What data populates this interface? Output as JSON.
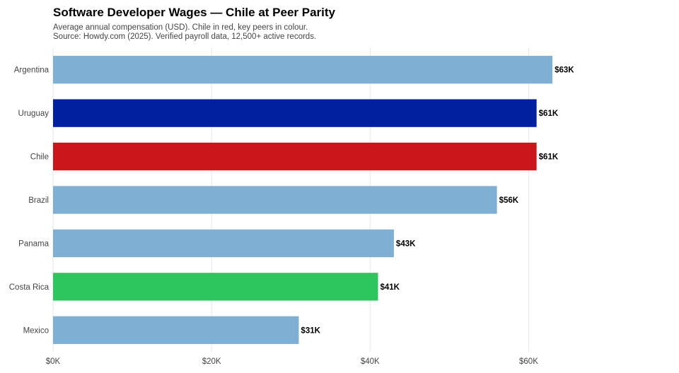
{
  "chart_data": {
    "type": "bar",
    "orientation": "horizontal",
    "title": "Software Developer Wages — Chile at Peer Parity",
    "subtitle": [
      "Average annual compensation (USD). Chile in red, key peers in colour.",
      "Source: Howdy.com (2025). Verified payroll data, 12,500+ active records."
    ],
    "categories": [
      "Argentina",
      "Uruguay",
      "Chile",
      "Brazil",
      "Panama",
      "Costa Rica",
      "Mexico"
    ],
    "values": [
      63,
      61,
      61,
      56,
      43,
      41,
      31
    ],
    "value_labels": [
      "$63K",
      "$61K",
      "$61K",
      "$56K",
      "$43K",
      "$41K",
      "$31K"
    ],
    "value_unit": "thousand USD",
    "bar_colors": [
      "#7fb0d4",
      "#00209f",
      "#cb161c",
      "#7fb0d4",
      "#7fb0d4",
      "#2dc55e",
      "#7fb0d4"
    ],
    "xlim": [
      0,
      80
    ],
    "xticks": [
      0,
      20,
      40,
      60
    ],
    "xtick_labels": [
      "$0K",
      "$20K",
      "$40K",
      "$60K"
    ],
    "xlabel": "",
    "ylabel": "",
    "grid": "vertical",
    "legend": "none"
  }
}
